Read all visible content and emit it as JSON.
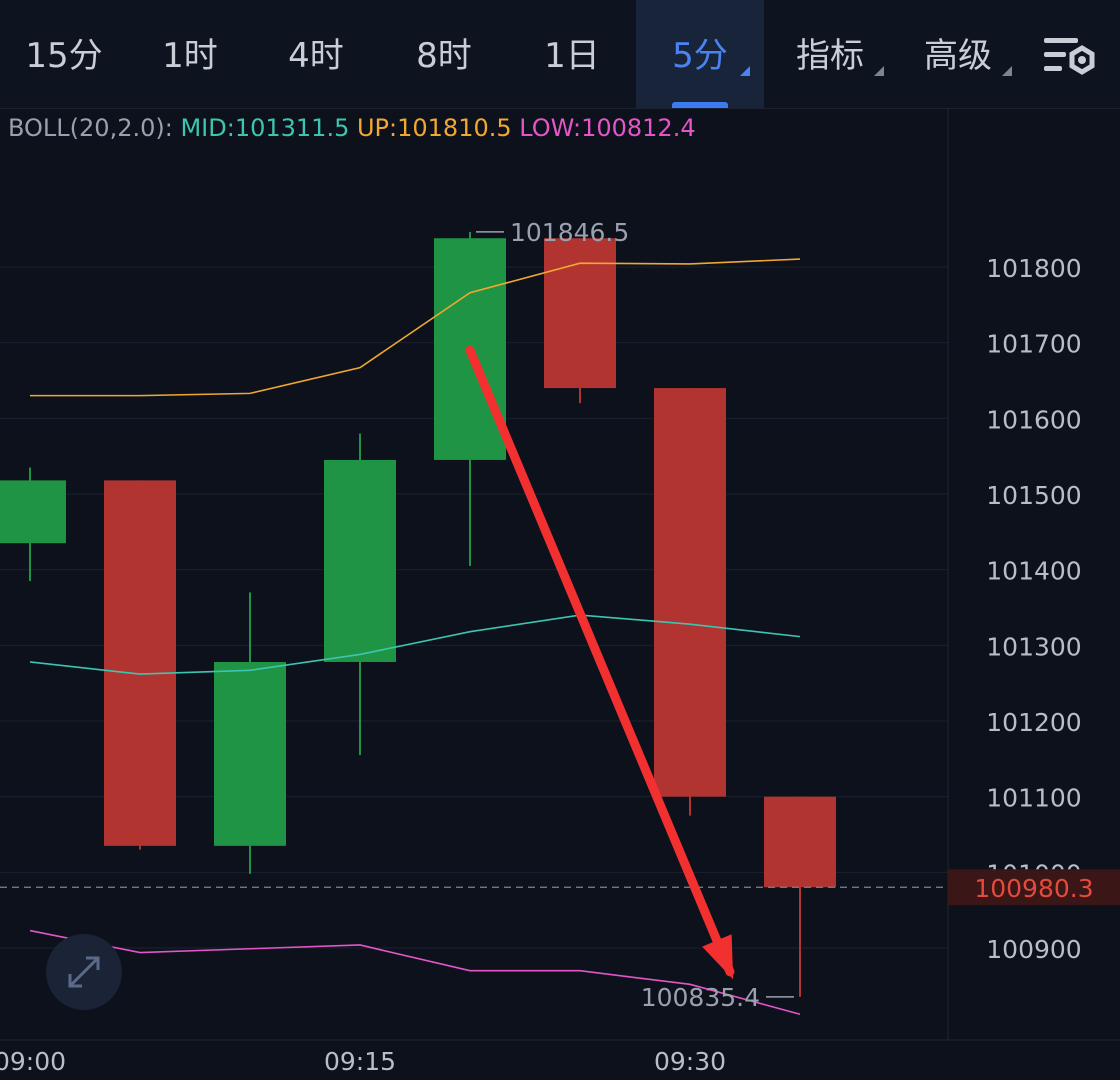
{
  "toolbar": {
    "tabs": [
      {
        "label": "15分",
        "active": false
      },
      {
        "label": "1时",
        "active": false
      },
      {
        "label": "4时",
        "active": false
      },
      {
        "label": "8时",
        "active": false
      },
      {
        "label": "1日",
        "active": false
      },
      {
        "label": "5分",
        "active": true,
        "dropdown": true
      },
      {
        "label": "指标",
        "active": false,
        "dropdown": true
      },
      {
        "label": "高级",
        "active": false,
        "dropdown": true
      }
    ],
    "settings_icon": "chart-settings-icon"
  },
  "legend": {
    "name": "BOLL(20,2.0):",
    "mid": "MID:101311.5",
    "up": "UP:101810.5",
    "low": "LOW:100812.4"
  },
  "colors": {
    "background": "#0d111c",
    "up_candle": "#1f9444",
    "down_candle": "#b13431",
    "boll_mid": "#3ec5b0",
    "boll_up": "#f0a830",
    "boll_low": "#e455c8",
    "arrow": "#f23030",
    "last_price": "#e24a3d"
  },
  "expand_icon": "expand-icon",
  "chart_data": {
    "type": "candlestick",
    "candles": [
      {
        "open": 101435,
        "high": 101535,
        "low": 101385,
        "close": 101518
      },
      {
        "open": 101518,
        "high": 101518,
        "low": 101030,
        "close": 101035
      },
      {
        "open": 101035,
        "high": 101370,
        "low": 100998,
        "close": 101278
      },
      {
        "open": 101278,
        "high": 101580,
        "low": 101155,
        "close": 101545
      },
      {
        "open": 101545,
        "high": 101846.5,
        "low": 101405,
        "close": 101838
      },
      {
        "open": 101838,
        "high": 101838,
        "low": 101620,
        "close": 101640
      },
      {
        "open": 101640,
        "high": 101640,
        "low": 101075,
        "close": 101100
      },
      {
        "open": 101100,
        "high": 101100,
        "low": 100835.4,
        "close": 100980.3
      }
    ],
    "boll": {
      "up": [
        101630,
        101630,
        101633,
        101667,
        101766,
        101805,
        101804,
        101810.5
      ],
      "mid": [
        101278,
        101262,
        101267,
        101288,
        101318,
        101340,
        101328,
        101311.5
      ],
      "low": [
        100923,
        100894,
        100899,
        100904,
        100870,
        100870,
        100852,
        100812.4
      ]
    },
    "x_ticks": [
      {
        "index": 0,
        "label": "09:00"
      },
      {
        "index": 3,
        "label": "09:15"
      },
      {
        "index": 6,
        "label": "09:30"
      }
    ],
    "y_ticks": [
      101800,
      101700,
      101600,
      101500,
      101400,
      101300,
      101200,
      101100,
      101000,
      100900
    ],
    "y_tick_labels": [
      "101800",
      "101700",
      "101600",
      "101500",
      "101400",
      "101300",
      "101200",
      "101100",
      "101000",
      "100900"
    ],
    "ylim": [
      100780,
      102040
    ],
    "high_label": "101846.5",
    "low_label": "100835.4",
    "last_price": 100980.3,
    "last_price_label": "100980.3",
    "arrow": {
      "from": {
        "index": 4,
        "value": 101690
      },
      "to": {
        "index": 7,
        "value": 100850
      }
    }
  }
}
